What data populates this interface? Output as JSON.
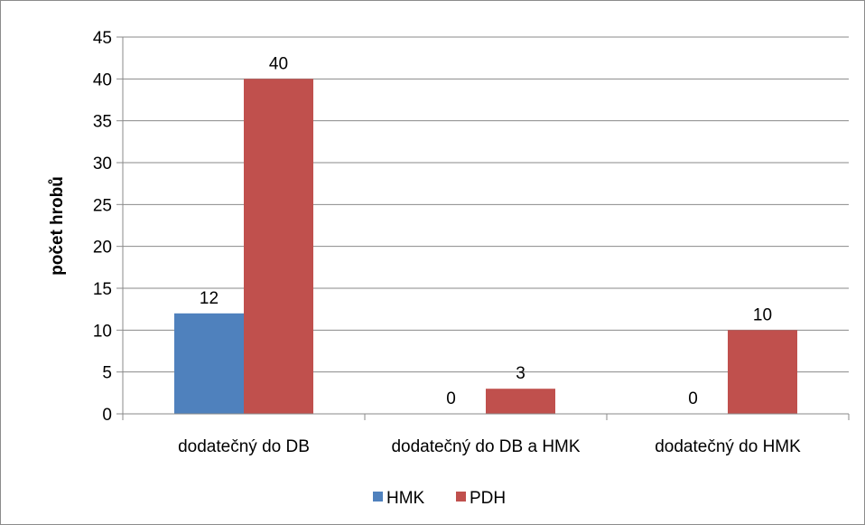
{
  "chart_data": {
    "type": "bar",
    "categories": [
      "dodatečný do DB",
      "dodatečný do DB a HMK",
      "dodatečný do HMK"
    ],
    "series": [
      {
        "name": "HMK",
        "values": [
          12,
          0,
          0
        ],
        "color": "#4f81bd"
      },
      {
        "name": "PDH",
        "values": [
          40,
          3,
          10
        ],
        "color": "#c0504d"
      }
    ],
    "title": "",
    "xlabel": "",
    "ylabel": "počet hrobů",
    "ylim": [
      0,
      45
    ],
    "yticks": [
      0,
      5,
      10,
      15,
      20,
      25,
      30,
      35,
      40,
      45
    ],
    "grid": true,
    "legend": "bottom",
    "data_labels": true
  }
}
